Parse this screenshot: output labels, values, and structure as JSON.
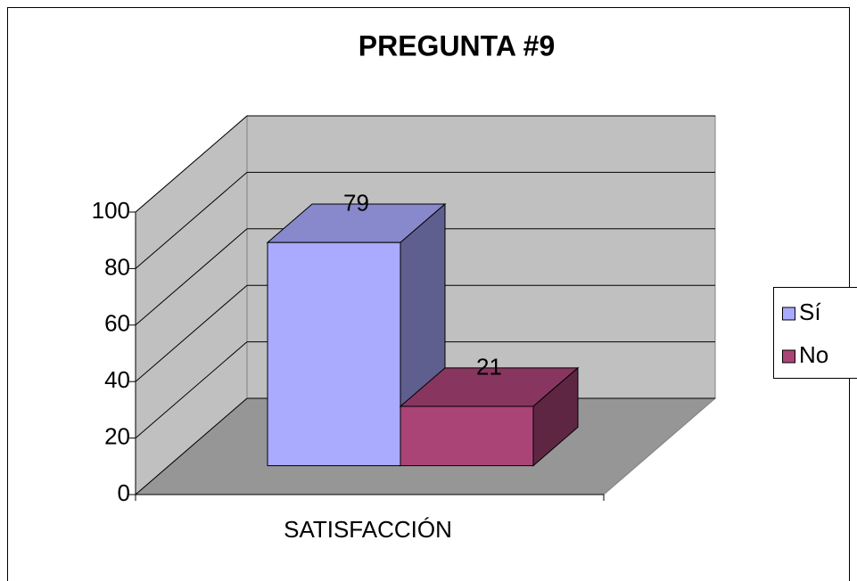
{
  "chart_data": {
    "type": "bar3d",
    "title": "PREGUNTA #9",
    "categories": [
      "SATISFACCIÓN"
    ],
    "series": [
      {
        "name": "Sí",
        "color": "#aaaaff",
        "values": [
          79
        ]
      },
      {
        "name": "No",
        "color": "#aa4477",
        "values": [
          21
        ]
      }
    ],
    "ylim": [
      0,
      100
    ],
    "yticks": [
      0,
      20,
      40,
      60,
      80,
      100
    ],
    "grid": true,
    "legend": "right"
  }
}
